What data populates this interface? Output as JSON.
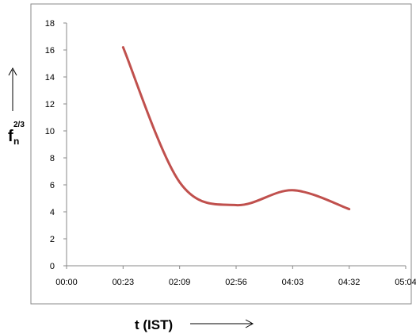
{
  "chart_data": {
    "type": "line",
    "title": "",
    "xlabel": "t  (IST)",
    "ylabel_base": "f",
    "ylabel_sub": "n",
    "ylabel_sup": "2/3",
    "x_categories": [
      "00:00",
      "00:23",
      "02:09",
      "02:56",
      "04:03",
      "04:32",
      "05:04"
    ],
    "ylim": [
      0,
      18
    ],
    "y_ticks": [
      0,
      2,
      4,
      6,
      8,
      10,
      12,
      14,
      16,
      18
    ],
    "grid": false,
    "legend": "none",
    "series": [
      {
        "x": [
          "00:23",
          "02:09",
          "02:56",
          "04:03",
          "04:32"
        ],
        "values": [
          16.2,
          6.2,
          4.5,
          5.6,
          4.2
        ],
        "color": "#c0504d"
      }
    ]
  }
}
